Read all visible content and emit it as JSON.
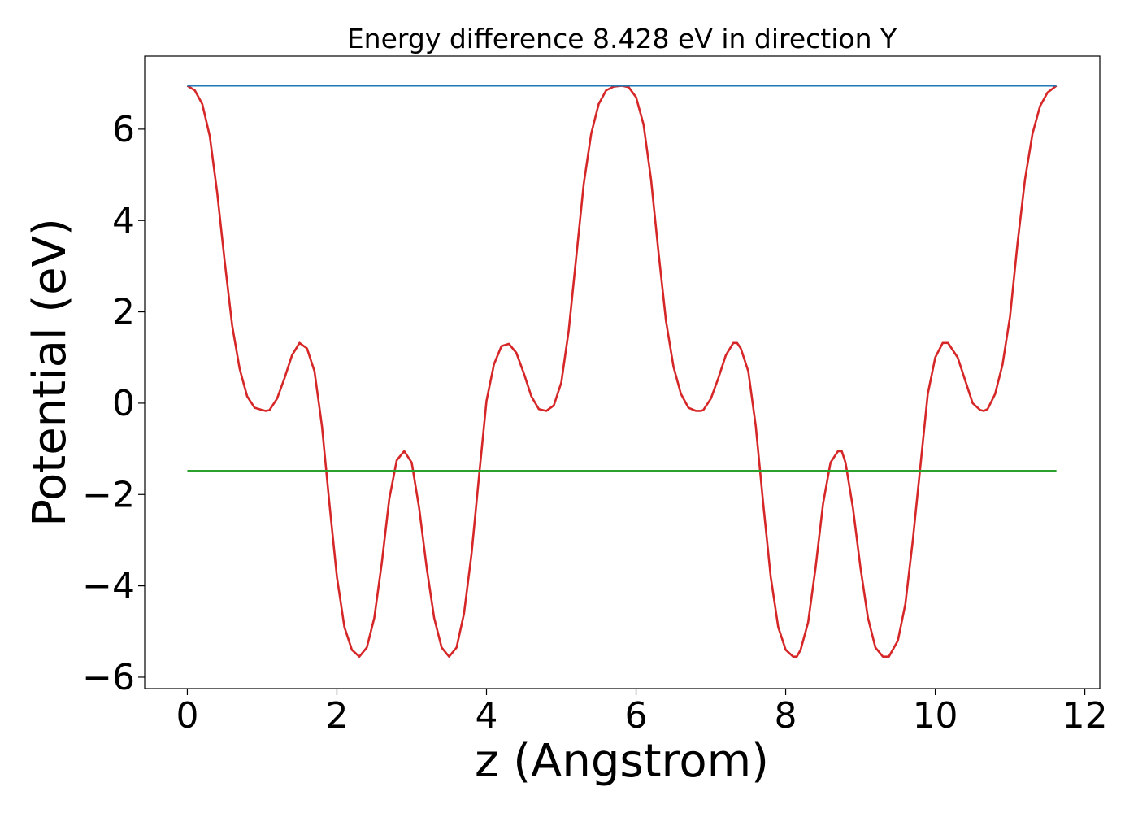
{
  "chart_data": {
    "type": "line",
    "title": "Energy difference 8.428 eV in direction Y",
    "xlabel": "z (Angstrom)",
    "ylabel": "Potential (eV)",
    "xlim": [
      -0.57,
      12.2
    ],
    "ylim": [
      -6.25,
      7.6
    ],
    "x_ticks": [
      0,
      2,
      4,
      6,
      8,
      10,
      12
    ],
    "x_tick_labels": [
      "0",
      "2",
      "4",
      "6",
      "8",
      "10",
      "12"
    ],
    "y_ticks": [
      -6,
      -4,
      -2,
      0,
      2,
      4,
      6
    ],
    "y_tick_labels": [
      "−6",
      "−4",
      "−2",
      "0",
      "2",
      "4",
      "6"
    ],
    "grid": false,
    "series": [
      {
        "color": "#d62728",
        "x": [
          0,
          0.1,
          0.2,
          0.3,
          0.4,
          0.5,
          0.6,
          0.7,
          0.8,
          0.9,
          1.0,
          1.05,
          1.1,
          1.2,
          1.3,
          1.4,
          1.5,
          1.6,
          1.7,
          1.8,
          1.9,
          2.0,
          2.1,
          2.2,
          2.3,
          2.4,
          2.5,
          2.6,
          2.7,
          2.8,
          2.9,
          3.0,
          3.1,
          3.2,
          3.3,
          3.4,
          3.5,
          3.6,
          3.7,
          3.8,
          3.9,
          4.0,
          4.1,
          4.2,
          4.3,
          4.4,
          4.5,
          4.6,
          4.7,
          4.8,
          4.9,
          5.0,
          5.1,
          5.2,
          5.3,
          5.4,
          5.5,
          5.6,
          5.7,
          5.81,
          5.9,
          6.0,
          6.1,
          6.2,
          6.3,
          6.4,
          6.5,
          6.6,
          6.7,
          6.8,
          6.87,
          6.9,
          7.0,
          7.1,
          7.2,
          7.3,
          7.35,
          7.4,
          7.5,
          7.6,
          7.7,
          7.8,
          7.9,
          8.0,
          8.1,
          8.15,
          8.2,
          8.3,
          8.4,
          8.5,
          8.6,
          8.7,
          8.75,
          8.8,
          8.9,
          9.0,
          9.1,
          9.2,
          9.3,
          9.38,
          9.5,
          9.6,
          9.7,
          9.8,
          9.9,
          10.0,
          10.1,
          10.17,
          10.3,
          10.4,
          10.5,
          10.6,
          10.65,
          10.7,
          10.8,
          10.9,
          11.0,
          11.1,
          11.2,
          11.3,
          11.4,
          11.5,
          11.62
        ],
        "y": [
          6.95,
          6.85,
          6.55,
          5.85,
          4.6,
          3.1,
          1.7,
          0.75,
          0.15,
          -0.1,
          -0.15,
          -0.17,
          -0.15,
          0.1,
          0.55,
          1.05,
          1.32,
          1.2,
          0.7,
          -0.5,
          -2.2,
          -3.8,
          -4.9,
          -5.4,
          -5.55,
          -5.35,
          -4.7,
          -3.5,
          -2.1,
          -1.25,
          -1.05,
          -1.3,
          -2.3,
          -3.6,
          -4.7,
          -5.35,
          -5.55,
          -5.35,
          -4.6,
          -3.3,
          -1.6,
          0.05,
          0.85,
          1.25,
          1.3,
          1.1,
          0.65,
          0.15,
          -0.13,
          -0.17,
          -0.05,
          0.45,
          1.6,
          3.2,
          4.8,
          5.9,
          6.55,
          6.85,
          6.93,
          6.95,
          6.92,
          6.7,
          6.1,
          4.9,
          3.3,
          1.8,
          0.8,
          0.2,
          -0.1,
          -0.17,
          -0.17,
          -0.15,
          0.1,
          0.55,
          1.05,
          1.32,
          1.32,
          1.2,
          0.7,
          -0.5,
          -2.2,
          -3.8,
          -4.9,
          -5.4,
          -5.55,
          -5.55,
          -5.4,
          -4.8,
          -3.6,
          -2.2,
          -1.3,
          -1.05,
          -1.05,
          -1.3,
          -2.3,
          -3.6,
          -4.7,
          -5.35,
          -5.55,
          -5.55,
          -5.2,
          -4.4,
          -3.0,
          -1.4,
          0.2,
          1.0,
          1.32,
          1.32,
          1.0,
          0.5,
          0.0,
          -0.15,
          -0.17,
          -0.13,
          0.2,
          0.85,
          1.9,
          3.5,
          4.9,
          5.9,
          6.5,
          6.8,
          6.95
        ]
      },
      {
        "color": "#1f77b4",
        "x": [
          0,
          11.62
        ],
        "y": [
          6.95,
          6.95
        ]
      },
      {
        "color": "#2ca02c",
        "x": [
          0,
          11.62
        ],
        "y": [
          -1.478,
          -1.478
        ]
      }
    ]
  }
}
